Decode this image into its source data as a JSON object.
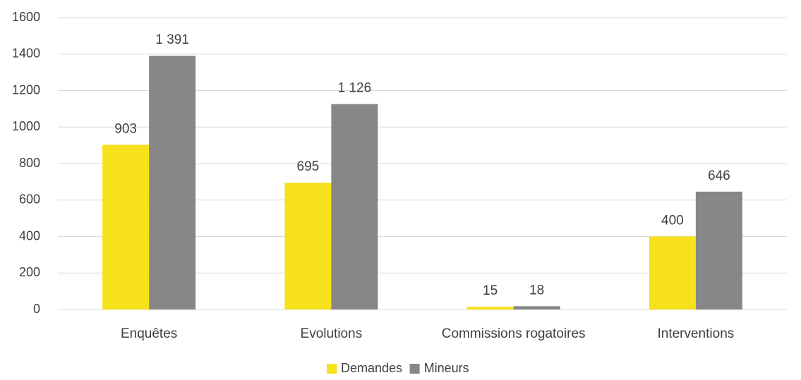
{
  "chart_data": {
    "type": "bar",
    "categories": [
      "Enquêtes",
      "Evolutions",
      "Commissions rogatoires",
      "Interventions"
    ],
    "series": [
      {
        "name": "Demandes",
        "values": [
          903,
          695,
          15,
          400
        ],
        "labels": [
          "903",
          "695",
          "15",
          "400"
        ],
        "color": "#f7e11b"
      },
      {
        "name": "Mineurs",
        "values": [
          1391,
          1126,
          18,
          646
        ],
        "labels": [
          "1 391",
          "1 126",
          "18",
          "646"
        ],
        "color": "#878787"
      }
    ],
    "ylim": [
      0,
      1600
    ],
    "yticks": [
      0,
      200,
      400,
      600,
      800,
      1000,
      1200,
      1400,
      1600
    ],
    "ytick_labels": [
      "0",
      "200",
      "400",
      "600",
      "800",
      "1000",
      "1200",
      "1400",
      "1600"
    ],
    "grid": true,
    "legend_position": "bottom",
    "title": "",
    "xlabel": "",
    "ylabel": ""
  },
  "colors": {
    "grid": "#d9d9d9",
    "text": "#404040"
  }
}
